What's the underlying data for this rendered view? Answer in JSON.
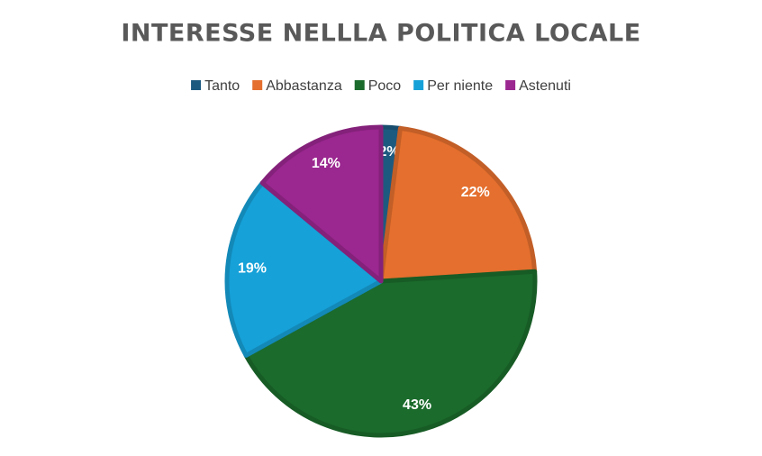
{
  "chart_data": {
    "type": "pie",
    "title": "INTERESSE NELLLA POLITICA LOCALE",
    "categories": [
      "Tanto",
      "Abbastanza",
      "Poco",
      "Per niente",
      "Astenuti"
    ],
    "values": [
      2,
      22,
      43,
      19,
      14
    ],
    "value_labels": [
      "2%",
      "22%",
      "43%",
      "19%",
      "14%"
    ],
    "colors": [
      "#1d5a80",
      "#e46f2e",
      "#1b6b2c",
      "#16a1d8",
      "#9b2790"
    ],
    "legend": "top"
  }
}
